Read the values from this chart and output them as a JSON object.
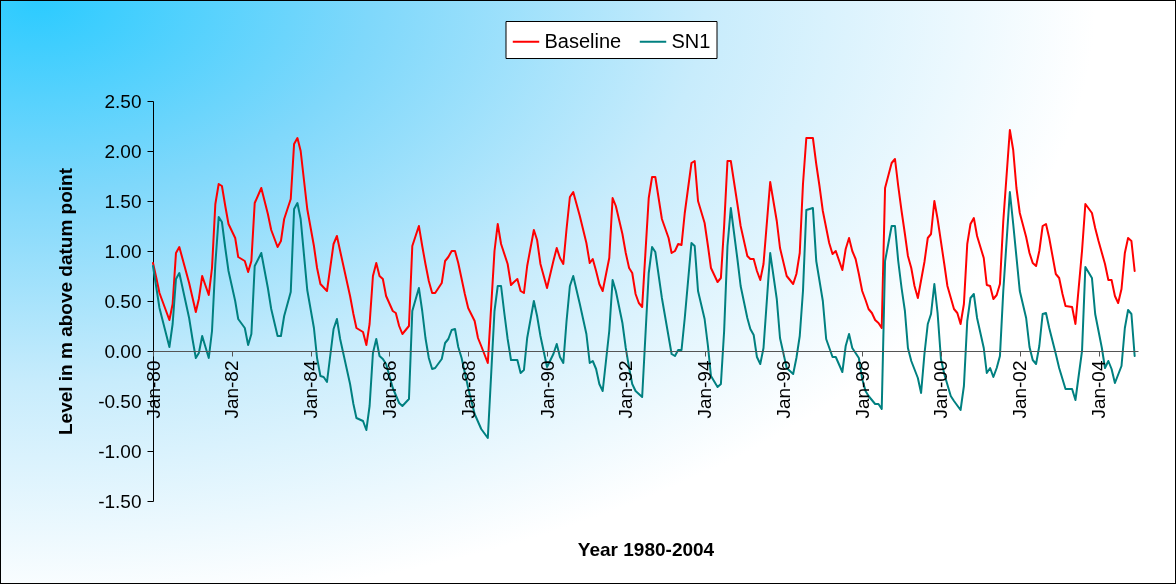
{
  "chart_data": {
    "type": "line",
    "xlabel": "Year 1980-2004",
    "ylabel": "Level in m above datum point",
    "xlim": [
      "1980-01",
      "2005-01"
    ],
    "xticks": [
      {
        "value": "1980-01",
        "label": "Jan-80"
      },
      {
        "value": "1982-01",
        "label": "Jan-82"
      },
      {
        "value": "1984-01",
        "label": "Jan-84"
      },
      {
        "value": "1986-01",
        "label": "Jan-86"
      },
      {
        "value": "1988-01",
        "label": "Jan-88"
      },
      {
        "value": "1990-01",
        "label": "Jan-90"
      },
      {
        "value": "1992-01",
        "label": "Jan-92"
      },
      {
        "value": "1994-01",
        "label": "Jan-94"
      },
      {
        "value": "1996-01",
        "label": "Jan-96"
      },
      {
        "value": "1998-01",
        "label": "Jan-98"
      },
      {
        "value": "2000-01",
        "label": "Jan-00"
      },
      {
        "value": "2002-01",
        "label": "Jan-02"
      },
      {
        "value": "2004-01",
        "label": "Jan-04"
      }
    ],
    "ylim": [
      -1.5,
      2.5
    ],
    "yticks": [
      {
        "value": -1.5,
        "label": "-1.50"
      },
      {
        "value": -1,
        "label": "-1.00"
      },
      {
        "value": -0.5,
        "label": "-0.50"
      },
      {
        "value": 0,
        "label": "0.00"
      },
      {
        "value": 0.5,
        "label": "0.50"
      },
      {
        "value": 1,
        "label": "1.00"
      },
      {
        "value": 1.5,
        "label": "1.50"
      },
      {
        "value": 2,
        "label": "2.00"
      },
      {
        "value": 2.5,
        "label": "2.50"
      }
    ],
    "legend": "top",
    "series": [
      {
        "name": "Baseline",
        "color": "#ff0000",
        "x": [
          "1980-01",
          "1980-02",
          "1980-03",
          "1980-06",
          "1980-07",
          "1980-08",
          "1980-09",
          "1980-12",
          "1981-02",
          "1981-03",
          "1981-04",
          "1981-06",
          "1981-07",
          "1981-08",
          "1981-09",
          "1981-10",
          "1981-11",
          "1981-12",
          "1982-02",
          "1982-03",
          "1982-05",
          "1982-06",
          "1982-07",
          "1982-08",
          "1982-10",
          "1982-12",
          "1983-01",
          "1983-03",
          "1983-04",
          "1983-05",
          "1983-07",
          "1983-08",
          "1983-09",
          "1983-10",
          "1983-12",
          "1984-02",
          "1984-03",
          "1984-04",
          "1984-06",
          "1984-08",
          "1984-09",
          "1984-10",
          "1985-01",
          "1985-02",
          "1985-03",
          "1985-05",
          "1985-06",
          "1985-07",
          "1985-08",
          "1985-09",
          "1985-10",
          "1985-11",
          "1985-12",
          "1986-02",
          "1986-03",
          "1986-04",
          "1986-05",
          "1986-07",
          "1986-08",
          "1986-10",
          "1986-11",
          "1986-12",
          "1987-01",
          "1987-02",
          "1987-03",
          "1987-05",
          "1987-06",
          "1987-07",
          "1987-08",
          "1987-09",
          "1987-10",
          "1987-12",
          "1988-01",
          "1988-03",
          "1988-04",
          "1988-05",
          "1988-07",
          "1988-09",
          "1988-10",
          "1988-11",
          "1989-01",
          "1989-02",
          "1989-03",
          "1989-04",
          "1989-05",
          "1989-06",
          "1989-07",
          "1989-09",
          "1989-10",
          "1989-11",
          "1990-01",
          "1990-03",
          "1990-04",
          "1990-05",
          "1990-06",
          "1990-07",
          "1990-08",
          "1990-09",
          "1990-11",
          "1991-01",
          "1991-02",
          "1991-03",
          "1991-04",
          "1991-05",
          "1991-06",
          "1991-08",
          "1991-09",
          "1991-10",
          "1991-12",
          "1992-01",
          "1992-02",
          "1992-03",
          "1992-04",
          "1992-05",
          "1992-06",
          "1992-08",
          "1992-09",
          "1992-10",
          "1992-12",
          "1993-02",
          "1993-03",
          "1993-04",
          "1993-05",
          "1993-06",
          "1993-07",
          "1993-09",
          "1993-10",
          "1993-11",
          "1994-01",
          "1994-02",
          "1994-03",
          "1994-05",
          "1994-06",
          "1994-07",
          "1994-08",
          "1994-09",
          "1994-11",
          "1994-12",
          "1995-02",
          "1995-03",
          "1995-04",
          "1995-05",
          "1995-06",
          "1995-07",
          "1995-09",
          "1995-11",
          "1995-12",
          "1996-02",
          "1996-04",
          "1996-05",
          "1996-06",
          "1996-07",
          "1996-08",
          "1996-10",
          "1996-11",
          "1996-12",
          "1997-01",
          "1997-03",
          "1997-04",
          "1997-05",
          "1997-07",
          "1997-08",
          "1997-09",
          "1997-10",
          "1997-11",
          "1997-12",
          "1998-01",
          "1998-02",
          "1998-03",
          "1998-04",
          "1998-05",
          "1998-06",
          "1998-07",
          "1998-08",
          "1998-10",
          "1998-11",
          "1998-12",
          "1999-01",
          "1999-02",
          "1999-03",
          "1999-04",
          "1999-05",
          "1999-06",
          "1999-08",
          "1999-09",
          "1999-10",
          "1999-11",
          "1999-12",
          "2000-02",
          "2000-03",
          "2000-05",
          "2000-06",
          "2000-07",
          "2000-08",
          "2000-09",
          "2000-10",
          "2000-11",
          "2000-12",
          "2001-02",
          "2001-03",
          "2001-04",
          "2001-05",
          "2001-06",
          "2001-07",
          "2001-08",
          "2001-10",
          "2001-11",
          "2001-12",
          "2002-01",
          "2002-03",
          "2002-04",
          "2002-05",
          "2002-06",
          "2002-07",
          "2002-08",
          "2002-09",
          "2002-10",
          "2002-12",
          "2003-01",
          "2003-02",
          "2003-03",
          "2003-05",
          "2003-06",
          "2003-08",
          "2003-09",
          "2003-11",
          "2003-12",
          "2004-01",
          "2004-03",
          "2004-04",
          "2004-05",
          "2004-06",
          "2004-07",
          "2004-08",
          "2004-09",
          "2004-10",
          "2004-11",
          "2004-12"
        ],
        "values": [
          0.88,
          0.73,
          0.58,
          0.31,
          0.47,
          0.98,
          1.04,
          0.68,
          0.39,
          0.52,
          0.75,
          0.56,
          0.83,
          1.47,
          1.67,
          1.65,
          1.45,
          1.27,
          1.13,
          0.94,
          0.9,
          0.79,
          0.9,
          1.48,
          1.63,
          1.37,
          1.21,
          1.04,
          1.1,
          1.32,
          1.52,
          2.07,
          2.13,
          2.0,
          1.42,
          1.05,
          0.83,
          0.67,
          0.6,
          1.07,
          1.15,
          1.0,
          0.55,
          0.37,
          0.23,
          0.19,
          0.06,
          0.27,
          0.75,
          0.88,
          0.75,
          0.72,
          0.55,
          0.4,
          0.38,
          0.25,
          0.17,
          0.25,
          1.05,
          1.25,
          1.05,
          0.87,
          0.7,
          0.58,
          0.58,
          0.68,
          0.9,
          0.94,
          1.0,
          1.0,
          0.88,
          0.57,
          0.43,
          0.3,
          0.13,
          0.05,
          -0.12,
          1.0,
          1.27,
          1.07,
          0.87,
          0.66,
          0.69,
          0.72,
          0.6,
          0.58,
          0.85,
          1.21,
          1.11,
          0.87,
          0.63,
          0.9,
          1.03,
          0.93,
          0.87,
          1.22,
          1.54,
          1.59,
          1.35,
          1.08,
          0.88,
          0.92,
          0.8,
          0.67,
          0.6,
          0.93,
          1.53,
          1.45,
          1.17,
          0.98,
          0.83,
          0.78,
          0.57,
          0.48,
          0.44,
          1.53,
          1.74,
          1.74,
          1.32,
          1.13,
          0.98,
          1.0,
          1.07,
          1.06,
          1.38,
          1.88,
          1.9,
          1.5,
          1.28,
          1.05,
          0.83,
          0.69,
          0.73,
          1.25,
          1.9,
          1.9,
          1.47,
          1.25,
          0.95,
          0.92,
          0.92,
          0.8,
          0.71,
          0.87,
          1.69,
          1.3,
          1.03,
          0.75,
          0.67,
          0.77,
          0.98,
          1.67,
          2.13,
          2.13,
          1.87,
          1.65,
          1.4,
          1.08,
          0.97,
          1.0,
          0.81,
          1.02,
          1.13,
          1.0,
          0.92,
          0.77,
          0.6,
          0.51,
          0.42,
          0.38,
          0.31,
          0.28,
          0.23,
          1.63,
          1.88,
          1.92,
          1.65,
          1.4,
          1.17,
          0.95,
          0.83,
          0.65,
          0.53,
          0.89,
          1.13,
          1.17,
          1.5,
          1.32,
          0.87,
          0.65,
          0.42,
          0.38,
          0.27,
          0.47,
          1.07,
          1.27,
          1.33,
          1.15,
          0.93,
          0.66,
          0.65,
          0.52,
          0.56,
          0.67,
          1.3,
          2.21,
          2.01,
          1.63,
          1.38,
          1.14,
          0.98,
          0.88,
          0.85,
          1.0,
          1.25,
          1.27,
          1.13,
          0.77,
          0.73,
          0.57,
          0.45,
          0.44,
          0.27,
          1.0,
          1.47,
          1.38,
          1.23,
          1.1,
          0.87,
          0.71,
          0.71,
          0.55,
          0.48,
          0.62,
          0.98,
          1.13,
          1.1,
          0.8
        ]
      },
      {
        "name": "SN1",
        "color": "#008080",
        "x": [
          "1980-01",
          "1980-03",
          "1980-06",
          "1980-07",
          "1980-08",
          "1980-09",
          "1980-12",
          "1981-01",
          "1981-02",
          "1981-03",
          "1981-04",
          "1981-06",
          "1981-07",
          "1981-08",
          "1981-09",
          "1981-10",
          "1981-11",
          "1981-12",
          "1982-02",
          "1982-03",
          "1982-05",
          "1982-06",
          "1982-07",
          "1982-08",
          "1982-10",
          "1982-12",
          "1983-01",
          "1983-03",
          "1983-04",
          "1983-05",
          "1983-07",
          "1983-08",
          "1983-09",
          "1983-10",
          "1983-12",
          "1984-02",
          "1984-03",
          "1984-04",
          "1984-05",
          "1984-06",
          "1984-08",
          "1984-09",
          "1984-10",
          "1985-01",
          "1985-02",
          "1985-03",
          "1985-05",
          "1985-06",
          "1985-07",
          "1985-08",
          "1985-09",
          "1985-10",
          "1985-11",
          "1985-12",
          "1986-02",
          "1986-04",
          "1986-05",
          "1986-07",
          "1986-08",
          "1986-10",
          "1986-11",
          "1986-12",
          "1987-01",
          "1987-02",
          "1987-03",
          "1987-05",
          "1987-06",
          "1987-07",
          "1987-08",
          "1987-09",
          "1987-10",
          "1987-11",
          "1988-01",
          "1988-03",
          "1988-05",
          "1988-07",
          "1988-09",
          "1988-10",
          "1988-11",
          "1988-12",
          "1989-01",
          "1989-02",
          "1989-04",
          "1989-05",
          "1989-06",
          "1989-07",
          "1989-09",
          "1989-10",
          "1989-11",
          "1990-01",
          "1990-03",
          "1990-04",
          "1990-05",
          "1990-06",
          "1990-07",
          "1990-08",
          "1990-09",
          "1990-11",
          "1991-01",
          "1991-02",
          "1991-03",
          "1991-04",
          "1991-05",
          "1991-06",
          "1991-08",
          "1991-09",
          "1991-10",
          "1991-12",
          "1992-01",
          "1992-02",
          "1992-03",
          "1992-04",
          "1992-06",
          "1992-08",
          "1992-09",
          "1992-10",
          "1992-12",
          "1993-03",
          "1993-04",
          "1993-05",
          "1993-06",
          "1993-07",
          "1993-09",
          "1993-10",
          "1993-11",
          "1994-01",
          "1994-02",
          "1994-03",
          "1994-05",
          "1994-06",
          "1994-07",
          "1994-08",
          "1994-09",
          "1994-11",
          "1994-12",
          "1995-02",
          "1995-03",
          "1995-04",
          "1995-05",
          "1995-06",
          "1995-07",
          "1995-09",
          "1995-11",
          "1995-12",
          "1996-02",
          "1996-04",
          "1996-05",
          "1996-06",
          "1996-07",
          "1996-08",
          "1996-10",
          "1996-11",
          "1997-01",
          "1997-02",
          "1997-04",
          "1997-05",
          "1997-07",
          "1997-08",
          "1997-09",
          "1997-10",
          "1997-12",
          "1998-01",
          "1998-02",
          "1998-03",
          "1998-05",
          "1998-06",
          "1998-07",
          "1998-08",
          "1998-10",
          "1998-11",
          "1998-12",
          "1999-01",
          "1999-02",
          "1999-03",
          "1999-04",
          "1999-06",
          "1999-07",
          "1999-08",
          "1999-09",
          "1999-10",
          "1999-11",
          "1999-12",
          "2000-01",
          "2000-02",
          "2000-04",
          "2000-05",
          "2000-07",
          "2000-08",
          "2000-09",
          "2000-10",
          "2000-11",
          "2000-12",
          "2001-02",
          "2001-03",
          "2001-04",
          "2001-05",
          "2001-06",
          "2001-07",
          "2001-08",
          "2001-10",
          "2001-11",
          "2002-01",
          "2002-03",
          "2002-04",
          "2002-05",
          "2002-06",
          "2002-07",
          "2002-08",
          "2002-09",
          "2002-10",
          "2002-12",
          "2003-01",
          "2003-03",
          "2003-05",
          "2003-06",
          "2003-08",
          "2003-09",
          "2003-11",
          "2003-12",
          "2004-02",
          "2004-03",
          "2004-04",
          "2004-05",
          "2004-06",
          "2004-08",
          "2004-09",
          "2004-10",
          "2004-11",
          "2004-12"
        ],
        "values": [
          0.85,
          0.43,
          0.04,
          0.27,
          0.72,
          0.78,
          0.33,
          0.12,
          -0.07,
          -0.02,
          0.15,
          -0.07,
          0.2,
          0.87,
          1.34,
          1.29,
          1.03,
          0.8,
          0.5,
          0.32,
          0.23,
          0.06,
          0.17,
          0.85,
          0.98,
          0.63,
          0.42,
          0.15,
          0.15,
          0.35,
          0.59,
          1.42,
          1.48,
          1.32,
          0.61,
          0.23,
          -0.07,
          -0.25,
          -0.26,
          -0.31,
          0.22,
          0.32,
          0.12,
          -0.33,
          -0.53,
          -0.67,
          -0.7,
          -0.79,
          -0.55,
          -0.02,
          0.12,
          -0.05,
          -0.08,
          -0.13,
          -0.37,
          -0.52,
          -0.55,
          -0.48,
          0.4,
          0.63,
          0.4,
          0.13,
          -0.07,
          -0.18,
          -0.17,
          -0.08,
          0.08,
          0.12,
          0.21,
          0.22,
          0.04,
          -0.07,
          -0.37,
          -0.63,
          -0.78,
          -0.87,
          0.4,
          0.65,
          0.65,
          0.38,
          0.12,
          -0.09,
          -0.09,
          -0.22,
          -0.19,
          0.13,
          0.5,
          0.35,
          0.15,
          -0.16,
          -0.03,
          0.07,
          -0.06,
          -0.12,
          0.3,
          0.65,
          0.75,
          0.47,
          0.17,
          -0.12,
          -0.1,
          -0.18,
          -0.33,
          -0.4,
          0.2,
          0.71,
          0.6,
          0.28,
          0.03,
          -0.17,
          -0.33,
          -0.4,
          -0.46,
          0.78,
          1.04,
          0.99,
          0.53,
          -0.03,
          -0.05,
          0.01,
          0.01,
          0.33,
          1.08,
          1.05,
          0.6,
          0.32,
          0.05,
          -0.25,
          -0.36,
          -0.33,
          0.2,
          1.05,
          1.43,
          0.92,
          0.65,
          0.33,
          0.22,
          0.16,
          -0.06,
          -0.13,
          0.03,
          0.98,
          0.52,
          0.13,
          -0.17,
          -0.23,
          -0.07,
          0.15,
          0.6,
          1.41,
          1.43,
          0.9,
          0.5,
          0.12,
          -0.06,
          -0.06,
          -0.21,
          0.05,
          0.17,
          0.03,
          -0.07,
          -0.28,
          -0.4,
          -0.45,
          -0.53,
          -0.53,
          -0.58,
          0.9,
          1.25,
          1.25,
          0.9,
          0.63,
          0.4,
          0.03,
          -0.1,
          -0.27,
          -0.42,
          -0.03,
          0.27,
          0.37,
          0.67,
          0.38,
          -0.08,
          -0.23,
          -0.45,
          -0.5,
          -0.59,
          -0.35,
          0.3,
          0.53,
          0.57,
          0.33,
          0.03,
          -0.22,
          -0.17,
          -0.26,
          -0.17,
          -0.05,
          0.6,
          1.59,
          1.27,
          0.6,
          0.33,
          0.04,
          -0.09,
          -0.13,
          0.05,
          0.37,
          0.38,
          0.23,
          -0.03,
          -0.17,
          -0.38,
          -0.38,
          -0.49,
          0.0,
          0.84,
          0.73,
          0.37,
          0.03,
          -0.17,
          -0.1,
          -0.18,
          -0.32,
          -0.15,
          0.23,
          0.41,
          0.37,
          -0.05
        ]
      }
    ]
  }
}
